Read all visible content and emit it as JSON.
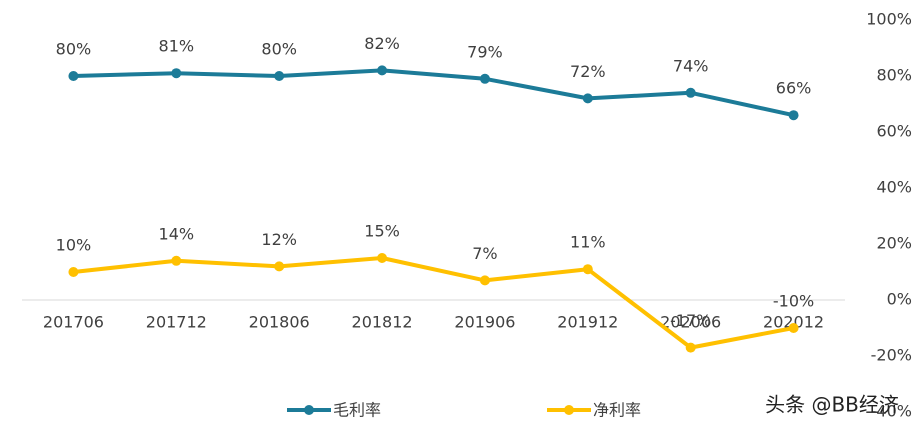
{
  "chart_data": {
    "type": "line",
    "categories": [
      "201706",
      "201712",
      "201806",
      "201812",
      "201906",
      "201912",
      "202006",
      "202012"
    ],
    "series": [
      {
        "name": "毛利率",
        "color": "#1c7b98",
        "values": [
          80,
          81,
          80,
          82,
          79,
          72,
          74,
          66
        ],
        "value_labels": [
          "80%",
          "81%",
          "80%",
          "82%",
          "79%",
          "72%",
          "74%",
          "66%"
        ]
      },
      {
        "name": "净利率",
        "color": "#ffc000",
        "values": [
          10,
          14,
          12,
          15,
          7,
          11,
          -17,
          -10
        ],
        "value_labels": [
          "10%",
          "14%",
          "12%",
          "15%",
          "7%",
          "11%",
          "-17%",
          "-10%"
        ]
      }
    ],
    "ylim": [
      -40,
      100
    ],
    "yticks": [
      {
        "value": 100,
        "label": "100%"
      },
      {
        "value": 80,
        "label": "80%"
      },
      {
        "value": 60,
        "label": "60%"
      },
      {
        "value": 40,
        "label": "40%"
      },
      {
        "value": 20,
        "label": "20%"
      },
      {
        "value": 0,
        "label": "0%"
      },
      {
        "value": -20,
        "label": "-20%"
      },
      {
        "value": -40,
        "label": "-40%"
      }
    ],
    "legend": "bottom",
    "watermark": "头条 @BB经济"
  }
}
